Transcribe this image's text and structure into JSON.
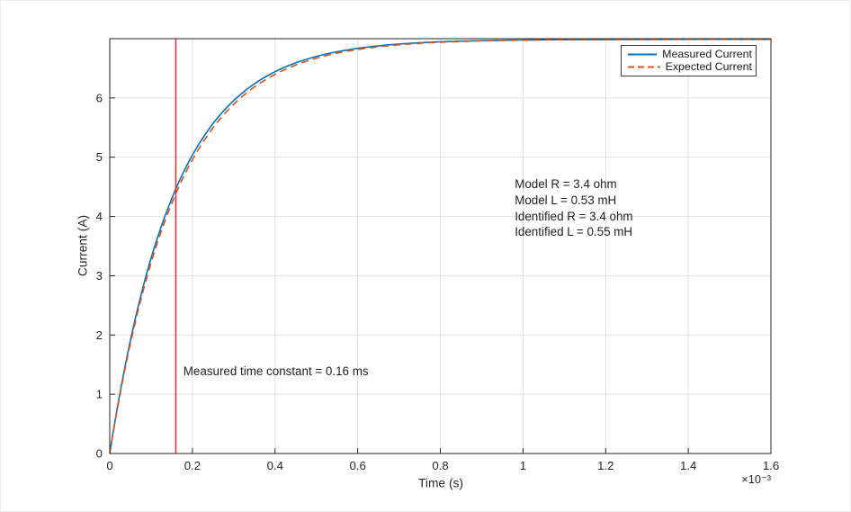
{
  "chart_data": {
    "type": "line",
    "title": "",
    "xlabel": "Time (s)",
    "ylabel": "Current (A)",
    "x_axis_multiplier": "×10⁻³",
    "xlim": [
      0,
      1.6
    ],
    "ylim": [
      0,
      7
    ],
    "xticks": [
      "0",
      "0.2",
      "0.4",
      "0.6",
      "0.8",
      "1",
      "1.2",
      "1.4",
      "1.6"
    ],
    "yticks": [
      "0",
      "1",
      "2",
      "3",
      "4",
      "5",
      "6"
    ],
    "grid": true,
    "grid_color": "#e0e0e0",
    "axis_color": "#262626",
    "legend_position": "northeast",
    "series": [
      {
        "name": "Measured Current",
        "color": "#0072BD",
        "line_style": "solid",
        "model": "exponential_rise",
        "steady_state_A": 6.99,
        "tau_ms": 0.157
      },
      {
        "name": "Expected Current",
        "color": "#D95319",
        "line_style": "dashed",
        "model": "exponential_rise",
        "steady_state_A": 6.99,
        "tau_ms": 0.162
      }
    ],
    "time_constant_marker": {
      "x": 0.16,
      "color": "#ff1e1e",
      "value_ms": 0.16
    },
    "annotations": {
      "time_constant_label": {
        "text": "Measured time constant = 0.16 ms",
        "x": 0.178,
        "y": 1.52
      },
      "model_info": {
        "x": 0.98,
        "y": 4.67,
        "lines": [
          "Model R = 3.4 ohm",
          "Model L = 0.53 mH",
          "Identified R = 3.4 ohm",
          "Identified L = 0.55 mH"
        ]
      }
    }
  }
}
